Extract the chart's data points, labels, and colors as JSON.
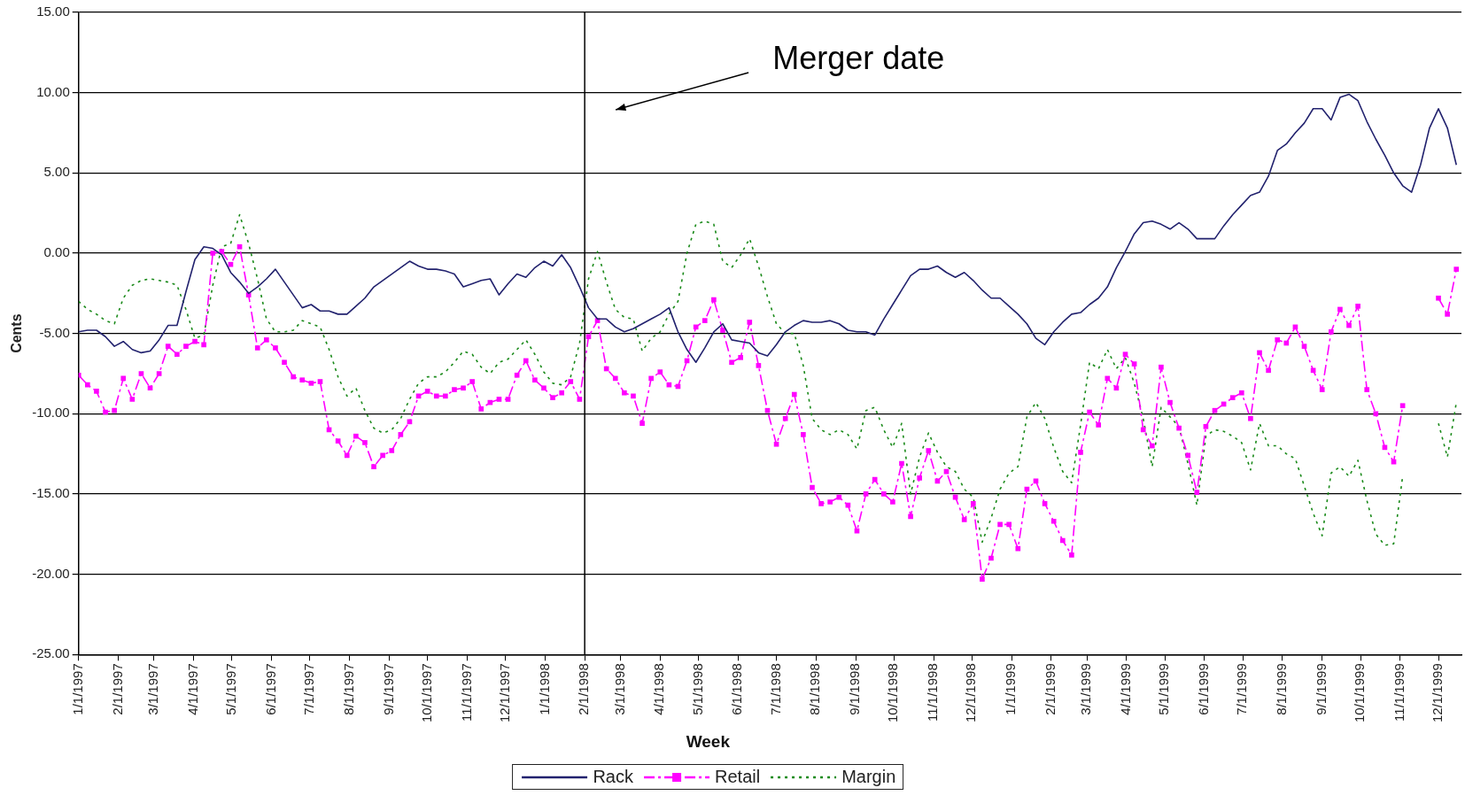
{
  "chart_data": {
    "type": "line",
    "xlabel": "Week",
    "ylabel": "Cents",
    "xlim": [
      "1997-01-01",
      "1999-12-19"
    ],
    "ylim": [
      -25,
      15
    ],
    "yticks": [
      {
        "value": -25,
        "label": "-25.00"
      },
      {
        "value": -20,
        "label": "-20.00"
      },
      {
        "value": -15,
        "label": "-15.00"
      },
      {
        "value": -10,
        "label": "-10.00"
      },
      {
        "value": -5,
        "label": "-5.00"
      },
      {
        "value": 0,
        "label": "0.00"
      },
      {
        "value": 5,
        "label": "5.00"
      },
      {
        "value": 10,
        "label": "10.00"
      },
      {
        "value": 15,
        "label": "15.00"
      }
    ],
    "xticks": [
      {
        "value": "1997-01-01",
        "label": "1/1/1997"
      },
      {
        "value": "1997-02-01",
        "label": "2/1/1997"
      },
      {
        "value": "1997-03-01",
        "label": "3/1/1997"
      },
      {
        "value": "1997-04-01",
        "label": "4/1/1997"
      },
      {
        "value": "1997-05-01",
        "label": "5/1/1997"
      },
      {
        "value": "1997-06-01",
        "label": "6/1/1997"
      },
      {
        "value": "1997-07-01",
        "label": "7/1/1997"
      },
      {
        "value": "1997-08-01",
        "label": "8/1/1997"
      },
      {
        "value": "1997-09-01",
        "label": "9/1/1997"
      },
      {
        "value": "1997-10-01",
        "label": "10/1/1997"
      },
      {
        "value": "1997-11-01",
        "label": "11/1/1997"
      },
      {
        "value": "1997-12-01",
        "label": "12/1/1997"
      },
      {
        "value": "1998-01-01",
        "label": "1/1/1998"
      },
      {
        "value": "1998-02-01",
        "label": "2/1/1998"
      },
      {
        "value": "1998-03-01",
        "label": "3/1/1998"
      },
      {
        "value": "1998-04-01",
        "label": "4/1/1998"
      },
      {
        "value": "1998-05-01",
        "label": "5/1/1998"
      },
      {
        "value": "1998-06-01",
        "label": "6/1/1998"
      },
      {
        "value": "1998-07-01",
        "label": "7/1/1998"
      },
      {
        "value": "1998-08-01",
        "label": "8/1/1998"
      },
      {
        "value": "1998-09-01",
        "label": "9/1/1998"
      },
      {
        "value": "1998-10-01",
        "label": "10/1/1998"
      },
      {
        "value": "1998-11-01",
        "label": "11/1/1998"
      },
      {
        "value": "1998-12-01",
        "label": "12/1/1998"
      },
      {
        "value": "1999-01-01",
        "label": "1/1/1999"
      },
      {
        "value": "1999-02-01",
        "label": "2/1/1999"
      },
      {
        "value": "1999-03-01",
        "label": "3/1/1999"
      },
      {
        "value": "1999-04-01",
        "label": "4/1/1999"
      },
      {
        "value": "1999-05-01",
        "label": "5/1/1999"
      },
      {
        "value": "1999-06-01",
        "label": "6/1/1999"
      },
      {
        "value": "1999-07-01",
        "label": "7/1/1999"
      },
      {
        "value": "1999-08-01",
        "label": "8/1/1999"
      },
      {
        "value": "1999-09-01",
        "label": "9/1/1999"
      },
      {
        "value": "1999-10-01",
        "label": "10/1/1999"
      },
      {
        "value": "1999-11-01",
        "label": "11/1/1999"
      },
      {
        "value": "1999-12-01",
        "label": "12/1/1999"
      }
    ],
    "grid": "y",
    "legend": "bottom",
    "ref_lines": [
      {
        "axis": "x",
        "value": "1998-02-01",
        "color": "#000000"
      }
    ],
    "annotations": [
      "Merger date"
    ],
    "x": [
      "1997-01-01",
      "1997-01-08",
      "1997-01-15",
      "1997-01-22",
      "1997-01-29",
      "1997-02-05",
      "1997-02-12",
      "1997-02-19",
      "1997-02-26",
      "1997-03-05",
      "1997-03-12",
      "1997-03-19",
      "1997-03-26",
      "1997-04-02",
      "1997-04-09",
      "1997-04-16",
      "1997-04-23",
      "1997-04-30",
      "1997-05-07",
      "1997-05-14",
      "1997-05-21",
      "1997-05-28",
      "1997-06-04",
      "1997-06-11",
      "1997-06-18",
      "1997-06-25",
      "1997-07-02",
      "1997-07-09",
      "1997-07-16",
      "1997-07-23",
      "1997-07-30",
      "1997-08-06",
      "1997-08-13",
      "1997-08-20",
      "1997-08-27",
      "1997-09-03",
      "1997-09-10",
      "1997-09-17",
      "1997-09-24",
      "1997-10-01",
      "1997-10-08",
      "1997-10-15",
      "1997-10-22",
      "1997-10-29",
      "1997-11-05",
      "1997-11-12",
      "1997-11-19",
      "1997-11-26",
      "1997-12-03",
      "1997-12-10",
      "1997-12-17",
      "1997-12-24",
      "1997-12-31",
      "1998-01-07",
      "1998-01-14",
      "1998-01-21",
      "1998-01-28",
      "1998-02-04",
      "1998-02-11",
      "1998-02-18",
      "1998-02-25",
      "1998-03-04",
      "1998-03-11",
      "1998-03-18",
      "1998-03-25",
      "1998-04-01",
      "1998-04-08",
      "1998-04-15",
      "1998-04-22",
      "1998-04-29",
      "1998-05-06",
      "1998-05-13",
      "1998-05-20",
      "1998-05-27",
      "1998-06-03",
      "1998-06-10",
      "1998-06-17",
      "1998-06-24",
      "1998-07-01",
      "1998-07-08",
      "1998-07-15",
      "1998-07-22",
      "1998-07-29",
      "1998-08-05",
      "1998-08-12",
      "1998-08-19",
      "1998-08-26",
      "1998-09-02",
      "1998-09-09",
      "1998-09-16",
      "1998-09-23",
      "1998-09-30",
      "1998-10-07",
      "1998-10-14",
      "1998-10-21",
      "1998-10-28",
      "1998-11-04",
      "1998-11-11",
      "1998-11-18",
      "1998-11-25",
      "1998-12-02",
      "1998-12-09",
      "1998-12-16",
      "1998-12-23",
      "1998-12-30",
      "1999-01-06",
      "1999-01-13",
      "1999-01-20",
      "1999-01-27",
      "1999-02-03",
      "1999-02-10",
      "1999-02-17",
      "1999-02-24",
      "1999-03-03",
      "1999-03-10",
      "1999-03-17",
      "1999-03-24",
      "1999-03-31",
      "1999-04-07",
      "1999-04-14",
      "1999-04-21",
      "1999-04-28",
      "1999-05-05",
      "1999-05-12",
      "1999-05-19",
      "1999-05-26",
      "1999-06-02",
      "1999-06-09",
      "1999-06-16",
      "1999-06-23",
      "1999-06-30",
      "1999-07-07",
      "1999-07-14",
      "1999-07-21",
      "1999-07-28",
      "1999-08-04",
      "1999-08-11",
      "1999-08-18",
      "1999-08-25",
      "1999-09-01",
      "1999-09-08",
      "1999-09-15",
      "1999-09-22",
      "1999-09-29",
      "1999-10-06",
      "1999-10-13",
      "1999-10-20",
      "1999-10-27",
      "1999-11-03",
      "1999-11-10",
      "1999-11-17",
      "1999-11-24",
      "1999-12-01",
      "1999-12-08",
      "1999-12-15"
    ],
    "series": [
      {
        "name": "Rack",
        "color": "#22226e",
        "line_style": "solid",
        "marker": "none",
        "values": [
          -4.9,
          -4.8,
          -4.8,
          -5.2,
          -5.8,
          -5.5,
          -6.0,
          -6.2,
          -6.1,
          -5.4,
          -4.5,
          -4.5,
          -2.4,
          -0.4,
          0.4,
          0.3,
          -0.1,
          -1.2,
          -1.8,
          -2.5,
          -2.1,
          -1.6,
          -1.0,
          -1.8,
          -2.6,
          -3.4,
          -3.2,
          -3.6,
          -3.6,
          -3.8,
          -3.8,
          -3.3,
          -2.8,
          -2.1,
          -1.7,
          -1.3,
          -0.9,
          -0.5,
          -0.8,
          -1.0,
          -1.0,
          -1.1,
          -1.3,
          -2.1,
          -1.9,
          -1.7,
          -1.6,
          -2.6,
          -1.9,
          -1.3,
          -1.5,
          -0.9,
          -0.5,
          -0.8,
          -0.1,
          -0.9,
          -2.1,
          -3.4,
          -4.1,
          -4.1,
          -4.6,
          -4.9,
          -4.7,
          -4.4,
          -4.1,
          -3.8,
          -3.4,
          -4.9,
          -6.0,
          -6.8,
          -5.9,
          -4.9,
          -4.4,
          -5.4,
          -5.5,
          -5.6,
          -6.2,
          -6.4,
          -5.7,
          -4.9,
          -4.5,
          -4.2,
          -4.3,
          -4.3,
          -4.2,
          -4.4,
          -4.8,
          -4.9,
          -4.9,
          -5.1,
          -4.1,
          -3.2,
          -2.3,
          -1.4,
          -1.0,
          -1.0,
          -0.8,
          -1.2,
          -1.5,
          -1.2,
          -1.7,
          -2.3,
          -2.8,
          -2.8,
          -3.3,
          -3.8,
          -4.4,
          -5.3,
          -5.7,
          -4.9,
          -4.3,
          -3.8,
          -3.7,
          -3.2,
          -2.8,
          -2.1,
          -0.9,
          0.1,
          1.2,
          1.9,
          2.0,
          1.8,
          1.5,
          1.9,
          1.5,
          0.9,
          0.9,
          0.9,
          1.7,
          2.4,
          3.0,
          3.6,
          3.8,
          4.8,
          6.4,
          6.8,
          7.5,
          8.1,
          9.0,
          9.0,
          8.3,
          9.7,
          9.9,
          9.5,
          8.2,
          7.1,
          6.1,
          5.0,
          4.2,
          3.8,
          5.5,
          7.8,
          9.0,
          7.8,
          5.5
        ]
      },
      {
        "name": "Retail",
        "color": "#ff00ff",
        "line_style": "dashed",
        "marker": "square",
        "values": [
          -7.6,
          -8.2,
          -8.6,
          -9.9,
          -9.8,
          -7.8,
          -9.1,
          -7.5,
          -8.4,
          -7.5,
          -5.8,
          -6.3,
          -5.8,
          -5.5,
          -5.7,
          0.0,
          0.1,
          -0.7,
          0.4,
          -2.6,
          -5.9,
          -5.4,
          -5.9,
          -6.8,
          -7.7,
          -7.9,
          -8.1,
          -8.0,
          -11.0,
          -11.7,
          -12.6,
          -11.4,
          -11.8,
          -13.3,
          -12.6,
          -12.3,
          -11.3,
          -10.5,
          -8.9,
          -8.6,
          -8.9,
          -8.9,
          -8.5,
          -8.4,
          -8.0,
          -9.7,
          -9.3,
          -9.1,
          -9.1,
          -7.6,
          -6.7,
          -7.9,
          -8.4,
          -9.0,
          -8.7,
          -8.0,
          -9.1,
          -5.2,
          -4.2,
          -7.2,
          -7.8,
          -8.7,
          -8.9,
          -10.6,
          -7.8,
          -7.4,
          -8.2,
          -8.3,
          -6.7,
          -4.6,
          -4.2,
          -2.9,
          -4.8,
          -6.8,
          -6.5,
          -4.3,
          -7.0,
          -9.8,
          -11.9,
          -10.3,
          -8.8,
          -11.3,
          -14.6,
          -15.6,
          -15.5,
          -15.2,
          -15.7,
          -17.3,
          -15.0,
          -14.1,
          -15.0,
          -15.5,
          -13.1,
          -16.4,
          -14.0,
          -12.3,
          -14.2,
          -13.6,
          -15.2,
          -16.6,
          -15.6,
          -20.3,
          -19.0,
          -16.9,
          -16.9,
          -18.4,
          -14.7,
          -14.2,
          -15.6,
          -16.7,
          -17.9,
          -18.8,
          -12.4,
          -9.9,
          -10.7,
          -7.8,
          -8.4,
          -6.3,
          -6.9,
          -11.0,
          -12.0,
          -7.1,
          -9.3,
          -10.9,
          -12.6,
          -14.9,
          -10.8,
          -9.8,
          -9.4,
          -9.0,
          -8.7,
          -10.3,
          -6.2,
          -7.3,
          -5.4,
          -5.6,
          -4.6,
          -5.8,
          -7.3,
          -8.5,
          -4.9,
          -3.5,
          -4.5,
          -3.3,
          -8.5,
          -10.0,
          -12.1,
          -13.0,
          -9.5,
          null,
          null,
          null,
          -2.8,
          -3.8,
          -1.0
        ]
      },
      {
        "name": "Margin",
        "color": "#1a8a1a",
        "line_style": "dotted",
        "marker": "none",
        "values": [
          -3.0,
          -3.5,
          -3.8,
          -4.2,
          -4.4,
          -2.8,
          -2.0,
          -1.7,
          -1.6,
          -1.7,
          -1.8,
          -2.0,
          -3.5,
          -5.3,
          -5.1,
          -2.0,
          0.4,
          0.6,
          2.4,
          0.6,
          -1.6,
          -4.1,
          -4.9,
          -4.9,
          -4.8,
          -4.2,
          -4.4,
          -4.6,
          -6.0,
          -7.7,
          -8.9,
          -8.4,
          -9.8,
          -10.9,
          -11.2,
          -11.0,
          -10.3,
          -9.1,
          -8.1,
          -7.7,
          -7.7,
          -7.4,
          -6.8,
          -6.1,
          -6.3,
          -7.1,
          -7.5,
          -6.8,
          -6.6,
          -6.0,
          -5.4,
          -6.3,
          -7.4,
          -8.1,
          -8.2,
          -7.7,
          -5.6,
          -1.6,
          0.1,
          -1.8,
          -3.5,
          -4.0,
          -4.1,
          -6.1,
          -5.3,
          -4.9,
          -3.8,
          -3.0,
          0.0,
          1.8,
          2.0,
          1.8,
          -0.5,
          -0.9,
          -0.1,
          0.9,
          -0.8,
          -2.7,
          -4.4,
          -5.0,
          -5.0,
          -7.0,
          -10.3,
          -11.0,
          -11.3,
          -11.0,
          -11.3,
          -12.2,
          -9.8,
          -9.6,
          -11.0,
          -12.1,
          -10.6,
          -15.0,
          -12.7,
          -11.2,
          -12.4,
          -13.3,
          -13.6,
          -14.7,
          -15.2,
          -18.0,
          -16.5,
          -14.7,
          -13.7,
          -13.3,
          -10.2,
          -9.3,
          -10.3,
          -12.1,
          -13.6,
          -14.3,
          -10.7,
          -6.8,
          -7.2,
          -6.0,
          -7.2,
          -6.5,
          -8.1,
          -10.3,
          -13.3,
          -9.6,
          -10.2,
          -10.8,
          -13.1,
          -15.7,
          -11.4,
          -11.0,
          -11.1,
          -11.4,
          -11.8,
          -13.5,
          -10.6,
          -12.0,
          -12.0,
          -12.5,
          -12.8,
          -14.5,
          -16.2,
          -17.6,
          -13.7,
          -13.3,
          -13.9,
          -12.9,
          -15.4,
          -17.5,
          -18.2,
          -18.1,
          -13.9,
          null,
          null,
          null,
          -10.6,
          -12.7,
          -9.3
        ]
      }
    ]
  }
}
